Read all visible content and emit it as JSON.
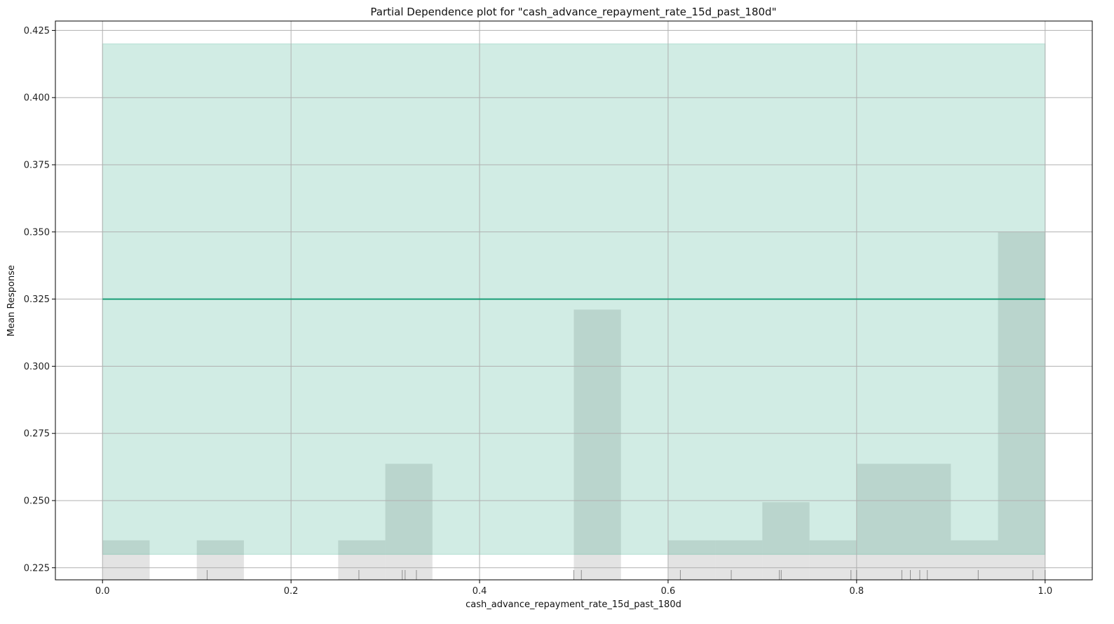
{
  "chart_data": {
    "type": "line",
    "title": "Partial Dependence plot for \"cash_advance_repayment_rate_15d_past_180d\"",
    "xlabel": "cash_advance_repayment_rate_15d_past_180d",
    "ylabel": "Mean Response",
    "xlim": [
      -0.05,
      1.05
    ],
    "ylim": [
      0.2205,
      0.4285
    ],
    "xticks": [
      0.0,
      0.2,
      0.4,
      0.6,
      0.8,
      1.0
    ],
    "xtick_labels": [
      "0.0",
      "0.2",
      "0.4",
      "0.6",
      "0.8",
      "1.0"
    ],
    "yticks": [
      0.225,
      0.25,
      0.275,
      0.3,
      0.325,
      0.35,
      0.375,
      0.4,
      0.425
    ],
    "ytick_labels": [
      "0.225",
      "0.250",
      "0.275",
      "0.300",
      "0.325",
      "0.350",
      "0.375",
      "0.400",
      "0.425"
    ],
    "grid": true,
    "series": [
      {
        "x": [
          0.0,
          1.0
        ],
        "y": [
          0.325,
          0.325
        ],
        "lower": [
          0.23,
          0.23
        ],
        "upper": [
          0.42,
          0.42
        ],
        "color": "#1b9e77",
        "band_color": "#1b9e77"
      }
    ],
    "histogram": {
      "color": "#c8c8c8",
      "baseline": 0.2205,
      "bins": [
        {
          "x0": 0.0,
          "x1": 0.05,
          "top": 0.2352
        },
        {
          "x0": 0.1,
          "x1": 0.15,
          "top": 0.2352
        },
        {
          "x0": 0.25,
          "x1": 0.3,
          "top": 0.2352
        },
        {
          "x0": 0.3,
          "x1": 0.35,
          "top": 0.2637
        },
        {
          "x0": 0.5,
          "x1": 0.55,
          "top": 0.3211
        },
        {
          "x0": 0.6,
          "x1": 0.65,
          "top": 0.2352
        },
        {
          "x0": 0.65,
          "x1": 0.7,
          "top": 0.2352
        },
        {
          "x0": 0.7,
          "x1": 0.75,
          "top": 0.2494
        },
        {
          "x0": 0.75,
          "x1": 0.8,
          "top": 0.2352
        },
        {
          "x0": 0.8,
          "x1": 0.85,
          "top": 0.2637
        },
        {
          "x0": 0.85,
          "x1": 0.9,
          "top": 0.2637
        },
        {
          "x0": 0.9,
          "x1": 0.95,
          "top": 0.2352
        },
        {
          "x0": 0.95,
          "x1": 1.0,
          "top": 0.35
        }
      ]
    },
    "rug": [
      0.111,
      0.272,
      0.318,
      0.321,
      0.333,
      0.5,
      0.508,
      0.613,
      0.667,
      0.718,
      0.72,
      0.794,
      0.8,
      0.848,
      0.857,
      0.867,
      0.875,
      0.929,
      0.987,
      1.0
    ]
  }
}
